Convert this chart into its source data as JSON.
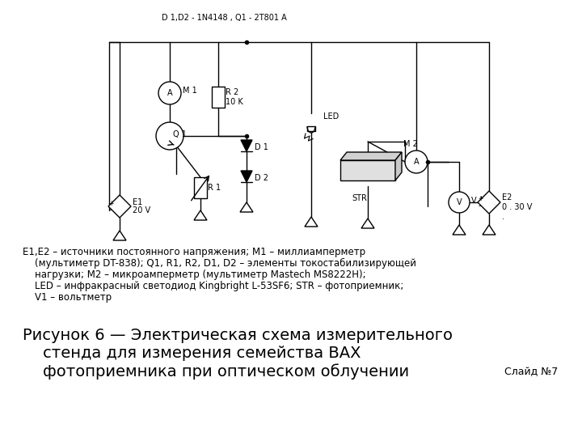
{
  "background_color": "#ffffff",
  "header_label": "D 1,D2 - 1N4148 , Q1 - 2T801 A",
  "desc_line1": "E1,E2 – источники постоянного напряжения; M1 – миллиамперметр",
  "desc_line2": "    (мультиметр DT-838); Q1, R1, R2, D1, D2 – элементы токостабилизирующей",
  "desc_line3": "    нагрузки; M2 – микроамперметр (мультиметр Mastech MS8222H);",
  "desc_line4": "    LED – инфракрасный светодиод Kingbright L-53SF6; STR – фотоприемник;",
  "desc_line5": "    V1 – вольтметр",
  "caption_line1": "Рисунок 6 — Электрическая схема измерительного",
  "caption_line2": "    стенда для измерения семейства ВАХ",
  "caption_line3": "    фотоприемника при оптическом облучении",
  "slide_num": "Слайд №7"
}
